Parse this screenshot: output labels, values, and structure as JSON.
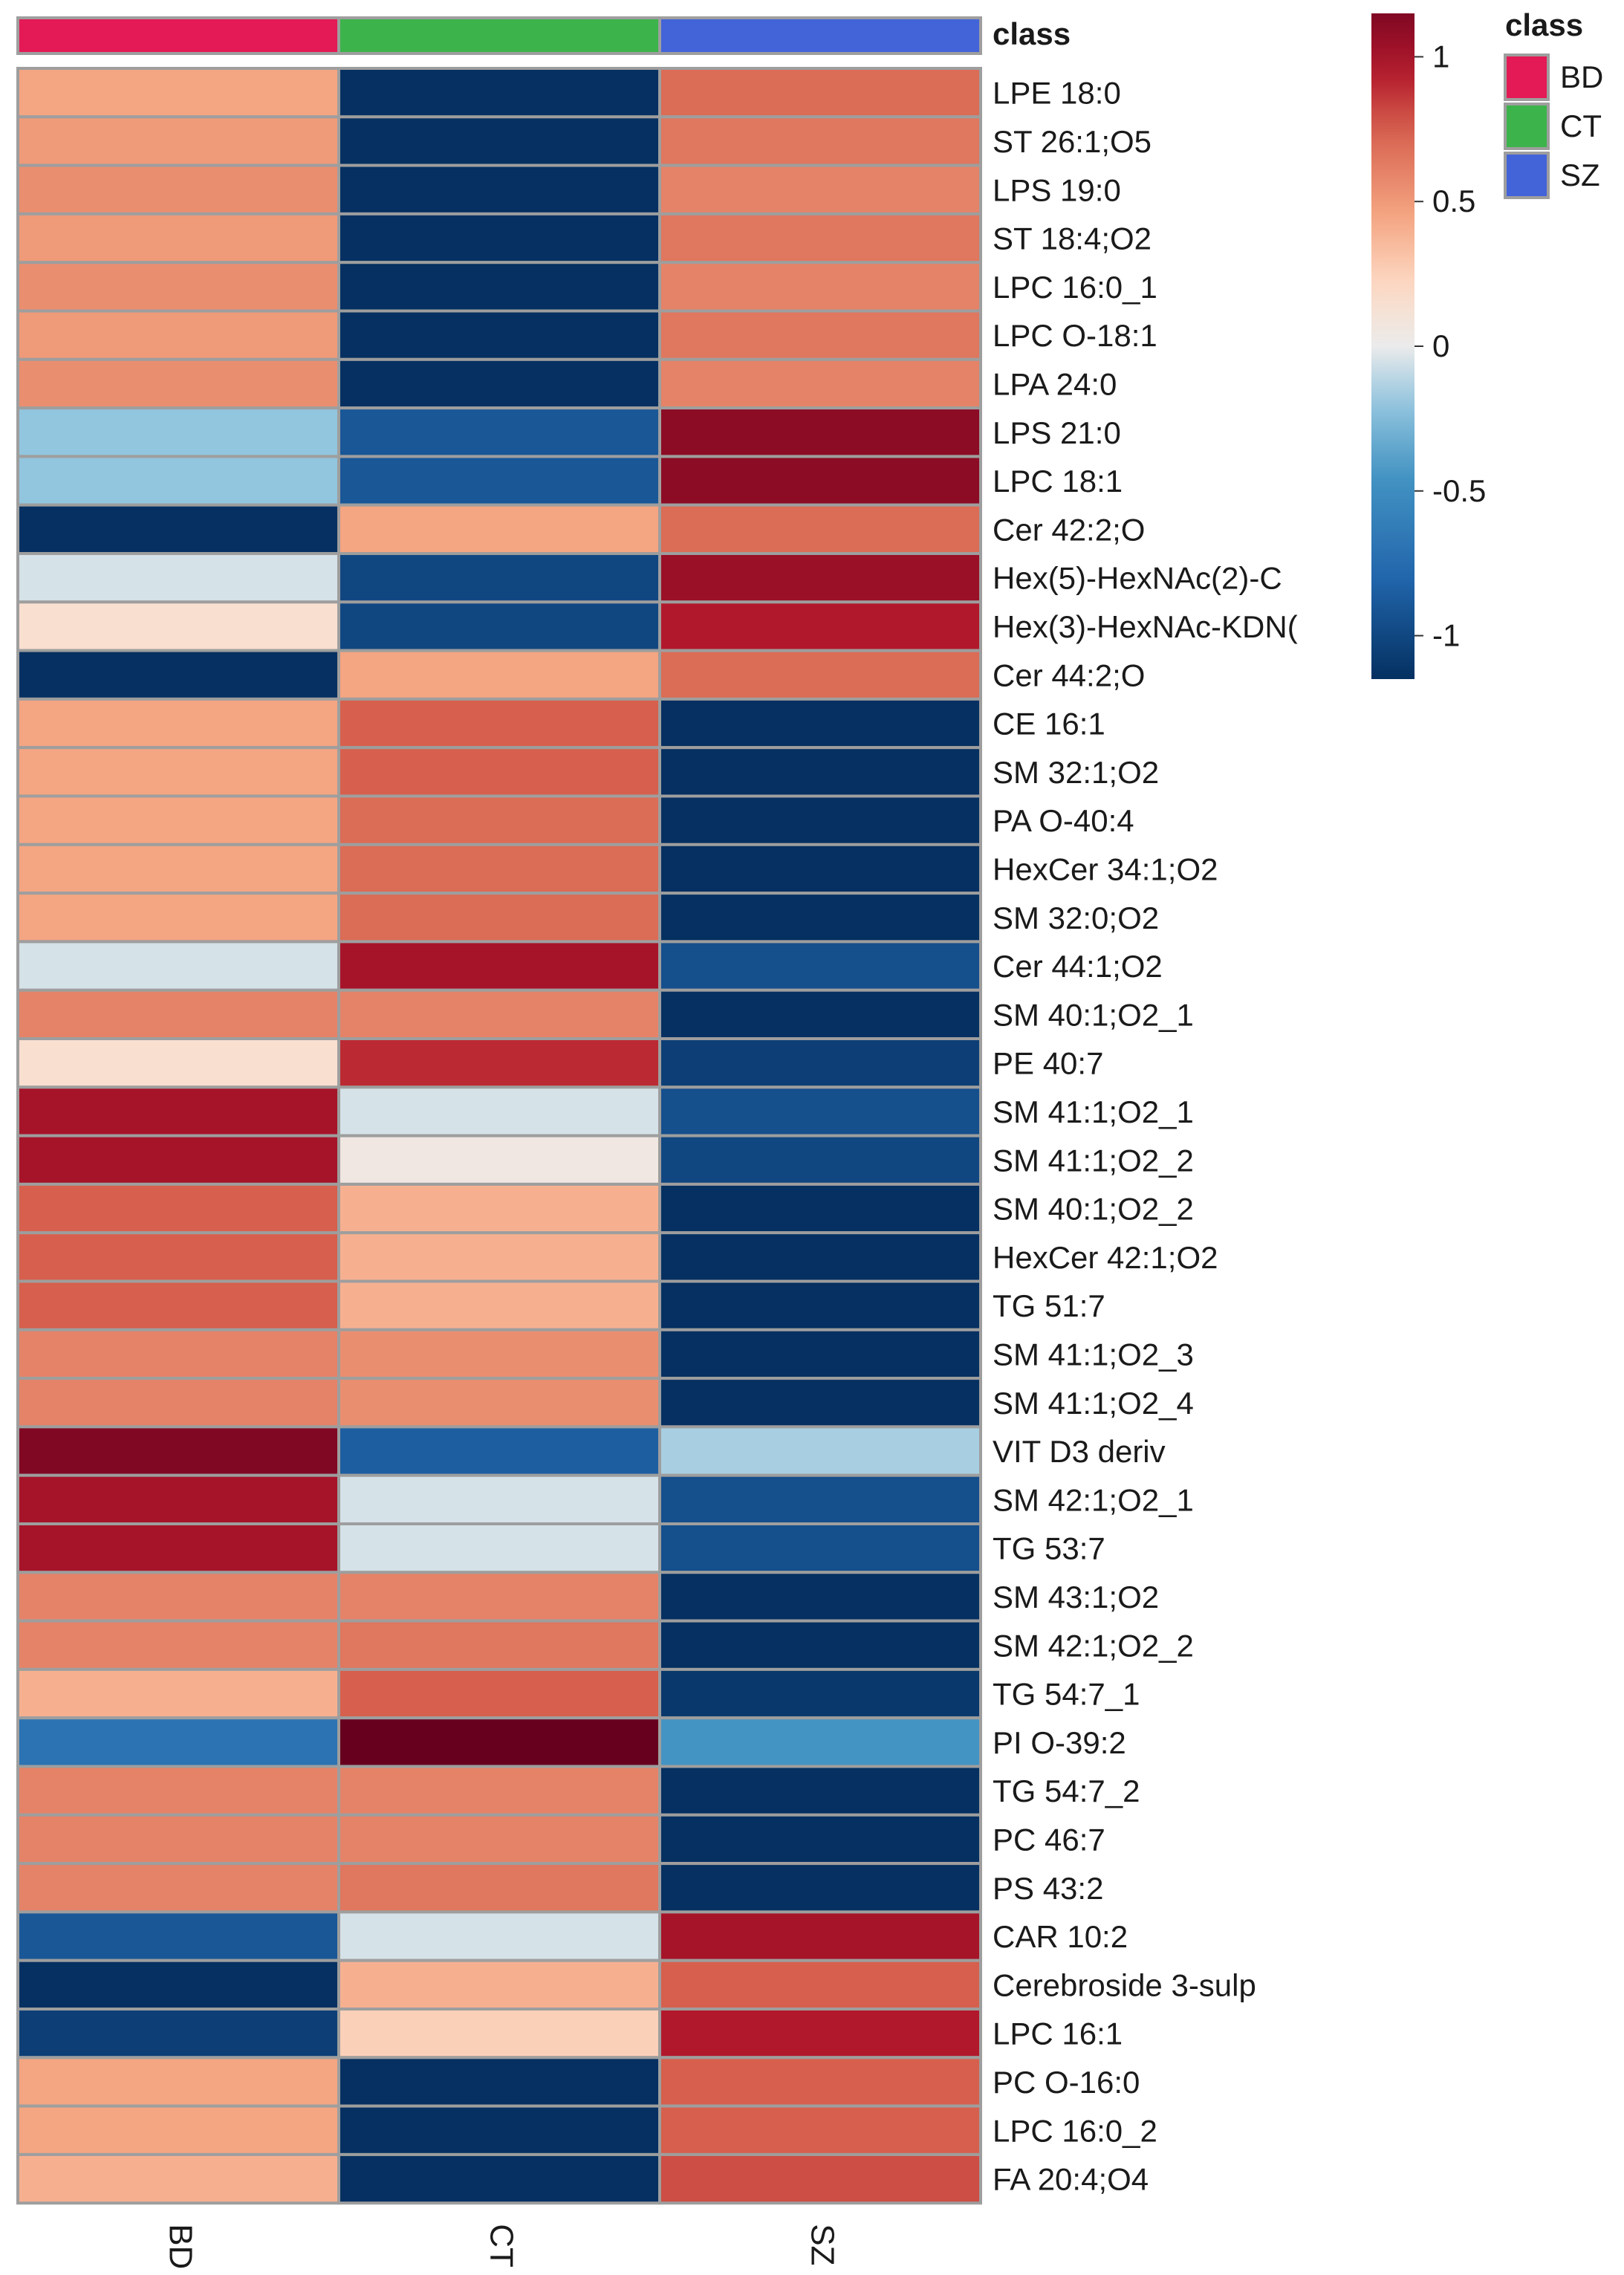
{
  "chart_data": {
    "type": "heatmap",
    "columns": [
      "BD",
      "CT",
      "SZ"
    ],
    "class_track": {
      "label": "class",
      "classes": [
        "BD",
        "CT",
        "SZ"
      ]
    },
    "class_legend": {
      "title": "class",
      "entries": [
        {
          "label": "BD",
          "color": "#e31a55"
        },
        {
          "label": "CT",
          "color": "#3cb44b"
        },
        {
          "label": "SZ",
          "color": "#4363d8"
        }
      ]
    },
    "colorbar": {
      "range": [
        -1.15,
        1.15
      ],
      "ticks": [
        1,
        0.5,
        0,
        -0.5,
        -1
      ],
      "tick_labels": [
        "1",
        "0.5",
        "0",
        "-0.5",
        "-1"
      ],
      "low_color": "#053061",
      "mid_color": "#f7f7f7",
      "high_color": "#67001f"
    },
    "rows": [
      "LPE 18:0",
      "ST 26:1;O5",
      "LPS 19:0",
      "ST 18:4;O2",
      "LPC 16:0_1",
      "LPC O-18:1",
      "LPA 24:0",
      "LPS 21:0",
      "LPC 18:1",
      "Cer 42:2;O",
      "Hex(5)-HexNAc(2)-C",
      "Hex(3)-HexNAc-KDN(",
      "Cer 44:2;O",
      "CE 16:1",
      "SM 32:1;O2",
      "PA O-40:4",
      "HexCer 34:1;O2",
      "SM 32:0;O2",
      "Cer 44:1;O2",
      "SM 40:1;O2_1",
      "PE 40:7",
      "SM 41:1;O2_1",
      "SM 41:1;O2_2",
      "SM 40:1;O2_2",
      "HexCer 42:1;O2",
      "TG 51:7",
      "SM 41:1;O2_3",
      "SM 41:1;O2_4",
      "VIT D3 deriv",
      "SM 42:1;O2_1",
      "TG 53:7",
      "SM 43:1;O2",
      "SM 42:1;O2_2",
      "TG 54:7_1",
      "PI O-39:2",
      "TG 54:7_2",
      "PC 46:7",
      "PS 43:2",
      "CAR 10:2",
      "Cerebroside 3-sulp",
      "LPC 16:1",
      "PC O-16:0",
      "LPC 16:0_2",
      "FA 20:4;O4"
    ],
    "values": [
      [
        0.45,
        -1.15,
        0.7
      ],
      [
        0.5,
        -1.15,
        0.65
      ],
      [
        0.55,
        -1.15,
        0.6
      ],
      [
        0.5,
        -1.15,
        0.65
      ],
      [
        0.55,
        -1.15,
        0.6
      ],
      [
        0.5,
        -1.15,
        0.65
      ],
      [
        0.55,
        -1.15,
        0.6
      ],
      [
        -0.2,
        -0.9,
        1.1
      ],
      [
        -0.2,
        -0.9,
        1.1
      ],
      [
        -1.15,
        0.45,
        0.7
      ],
      [
        -0.05,
        -1.0,
        1.05
      ],
      [
        0.15,
        -1.0,
        0.95
      ],
      [
        -1.15,
        0.45,
        0.7
      ],
      [
        0.45,
        0.75,
        -1.15
      ],
      [
        0.45,
        0.75,
        -1.15
      ],
      [
        0.45,
        0.7,
        -1.15
      ],
      [
        0.45,
        0.7,
        -1.15
      ],
      [
        0.45,
        0.7,
        -1.15
      ],
      [
        -0.05,
        1.0,
        -0.95
      ],
      [
        0.6,
        0.6,
        -1.15
      ],
      [
        0.15,
        0.9,
        -1.05
      ],
      [
        1.0,
        -0.05,
        -0.95
      ],
      [
        1.0,
        0.05,
        -1.0
      ],
      [
        0.75,
        0.4,
        -1.15
      ],
      [
        0.75,
        0.4,
        -1.15
      ],
      [
        0.75,
        0.4,
        -1.15
      ],
      [
        0.6,
        0.55,
        -1.15
      ],
      [
        0.6,
        0.55,
        -1.15
      ],
      [
        1.15,
        -0.85,
        -0.15
      ],
      [
        1.0,
        -0.05,
        -0.95
      ],
      [
        1.0,
        -0.05,
        -0.95
      ],
      [
        0.6,
        0.6,
        -1.15
      ],
      [
        0.6,
        0.65,
        -1.15
      ],
      [
        0.4,
        0.75,
        -1.1
      ],
      [
        -0.7,
        1.25,
        -0.45
      ],
      [
        0.6,
        0.6,
        -1.15
      ],
      [
        0.6,
        0.6,
        -1.15
      ],
      [
        0.6,
        0.65,
        -1.15
      ],
      [
        -0.9,
        -0.05,
        1.0
      ],
      [
        -1.15,
        0.4,
        0.75
      ],
      [
        -1.05,
        0.25,
        0.95
      ],
      [
        0.45,
        -1.15,
        0.75
      ],
      [
        0.45,
        -1.15,
        0.75
      ],
      [
        0.4,
        -1.15,
        0.8
      ]
    ]
  }
}
